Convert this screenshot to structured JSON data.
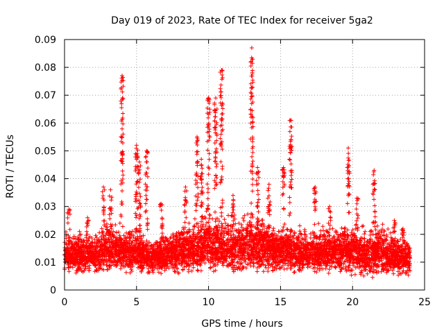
{
  "colors": {
    "marker": "#ff0000",
    "grid": "#a0a0a0",
    "axis": "#000000",
    "background": "#ffffff"
  },
  "chart_data": {
    "type": "scatter",
    "title": "Day 019 of 2023, Rate Of TEC Index for receiver 5ga2",
    "xlabel": "GPS time / hours",
    "ylabel": "ROTI / TECUs",
    "xlim": [
      0,
      25
    ],
    "ylim": [
      0,
      0.09
    ],
    "xticks": [
      0,
      5,
      10,
      15,
      20,
      25
    ],
    "xtick_labels": [
      "0",
      "5",
      "10",
      "15",
      "20",
      "25"
    ],
    "yticks": [
      0,
      0.01,
      0.02,
      0.03,
      0.04,
      0.05,
      0.06,
      0.07,
      0.08,
      0.09
    ],
    "ytick_labels": [
      "0",
      "0.01",
      "0.02",
      "0.03",
      "0.04",
      "0.05",
      "0.06",
      "0.07",
      "0.08",
      "0.09"
    ],
    "grid": true,
    "marker": "+",
    "x_data_range": [
      0,
      24
    ],
    "baseline_envelope": {
      "hours": [
        0,
        1,
        2,
        3,
        4,
        5,
        6,
        7,
        8,
        9,
        10,
        11,
        12,
        13,
        14,
        15,
        16,
        17,
        18,
        19,
        20,
        21,
        22,
        23,
        24
      ],
      "lower": [
        0.005,
        0.005,
        0.005,
        0.005,
        0.005,
        0.005,
        0.005,
        0.005,
        0.005,
        0.005,
        0.005,
        0.005,
        0.005,
        0.005,
        0.005,
        0.005,
        0.005,
        0.005,
        0.005,
        0.005,
        0.004,
        0.004,
        0.004,
        0.004,
        0.004
      ],
      "upper": [
        0.022,
        0.022,
        0.022,
        0.027,
        0.025,
        0.024,
        0.02,
        0.022,
        0.025,
        0.027,
        0.03,
        0.029,
        0.028,
        0.03,
        0.028,
        0.027,
        0.025,
        0.024,
        0.025,
        0.024,
        0.026,
        0.024,
        0.025,
        0.022,
        0.02
      ]
    },
    "spikes": [
      {
        "x": 0.3,
        "ymax": 0.029
      },
      {
        "x": 1.6,
        "ymax": 0.026
      },
      {
        "x": 2.7,
        "ymax": 0.037
      },
      {
        "x": 3.2,
        "ymax": 0.036
      },
      {
        "x": 4.0,
        "ymax": 0.077
      },
      {
        "x": 5.0,
        "ymax": 0.052
      },
      {
        "x": 5.2,
        "ymax": 0.046
      },
      {
        "x": 5.7,
        "ymax": 0.05
      },
      {
        "x": 6.7,
        "ymax": 0.031
      },
      {
        "x": 8.4,
        "ymax": 0.037
      },
      {
        "x": 9.2,
        "ymax": 0.055
      },
      {
        "x": 9.5,
        "ymax": 0.047
      },
      {
        "x": 10.0,
        "ymax": 0.069
      },
      {
        "x": 10.5,
        "ymax": 0.069
      },
      {
        "x": 10.9,
        "ymax": 0.079
      },
      {
        "x": 11.7,
        "ymax": 0.034
      },
      {
        "x": 13.0,
        "ymax": 0.087
      },
      {
        "x": 13.4,
        "ymax": 0.044
      },
      {
        "x": 14.2,
        "ymax": 0.038
      },
      {
        "x": 15.2,
        "ymax": 0.044
      },
      {
        "x": 15.7,
        "ymax": 0.061
      },
      {
        "x": 17.4,
        "ymax": 0.037
      },
      {
        "x": 18.4,
        "ymax": 0.03
      },
      {
        "x": 19.7,
        "ymax": 0.051
      },
      {
        "x": 20.3,
        "ymax": 0.033
      },
      {
        "x": 21.5,
        "ymax": 0.043
      },
      {
        "x": 22.9,
        "ymax": 0.025
      },
      {
        "x": 23.5,
        "ymax": 0.022
      }
    ]
  }
}
